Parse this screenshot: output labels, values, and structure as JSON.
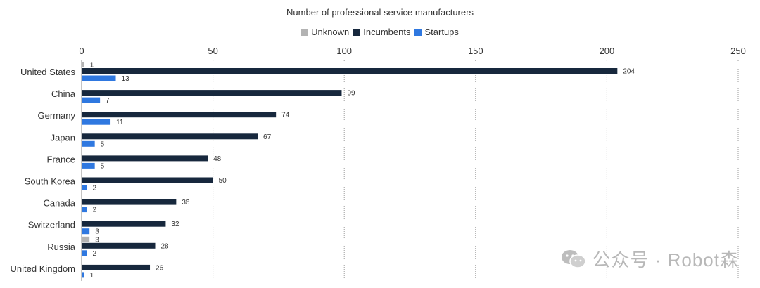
{
  "chart_data": {
    "type": "bar",
    "orientation": "horizontal",
    "title": "Number of professional service manufacturers",
    "categories": [
      "United States",
      "China",
      "Germany",
      "Japan",
      "France",
      "South Korea",
      "Canada",
      "Switzerland",
      "Russia",
      "United Kingdom"
    ],
    "series": [
      {
        "name": "Unknown",
        "color": "#b3b3b3",
        "values": [
          1,
          null,
          null,
          null,
          null,
          null,
          null,
          null,
          3,
          null
        ]
      },
      {
        "name": "Incumbents",
        "color": "#17283d",
        "values": [
          204,
          99,
          74,
          67,
          48,
          50,
          36,
          32,
          28,
          26
        ]
      },
      {
        "name": "Startups",
        "color": "#2f78e0",
        "values": [
          13,
          7,
          11,
          5,
          5,
          2,
          2,
          3,
          2,
          1
        ]
      }
    ],
    "xlim": [
      0,
      250
    ],
    "xticks": [
      0,
      50,
      100,
      150,
      200,
      250
    ],
    "grid": "vertical dotted",
    "legend_position": "top-center"
  },
  "watermark": {
    "text": "公众号 · Robot森",
    "icon": "wechat-icon"
  }
}
